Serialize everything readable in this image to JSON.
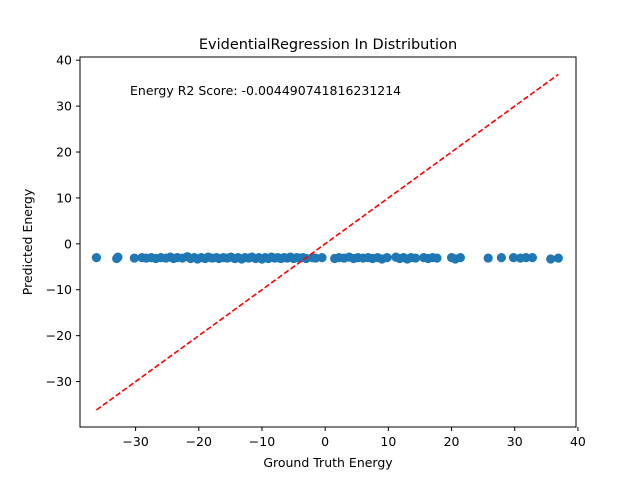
{
  "chart_data": {
    "type": "scatter",
    "title": "EvidentialRegression In Distribution",
    "xlabel": "Ground Truth Energy",
    "ylabel": "Predicted Energy",
    "annotation": "Energy R2 Score: -0.004490741816231214",
    "xlim": [
      -38.8,
      39.7
    ],
    "ylim": [
      -39.9,
      40.7
    ],
    "xticks": [
      -30,
      -20,
      -10,
      0,
      10,
      20,
      30,
      40
    ],
    "xtick_labels": [
      "−30",
      "−20",
      "−10",
      "0",
      "10",
      "20",
      "30",
      "40"
    ],
    "yticks": [
      -30,
      -20,
      -10,
      0,
      10,
      20,
      30,
      40
    ],
    "ytick_labels": [
      "−30",
      "−20",
      "−10",
      "0",
      "10",
      "20",
      "30",
      "40"
    ],
    "grid": false,
    "series": [
      {
        "marker": "circle",
        "color": "#1f77b4",
        "points": [
          [
            -36.2,
            -3.0
          ],
          [
            -33.0,
            -3.2
          ],
          [
            -32.8,
            -2.9
          ],
          [
            -30.2,
            -3.1
          ],
          [
            -29.0,
            -3.0
          ],
          [
            -28.3,
            -3.1
          ],
          [
            -27.5,
            -3.0
          ],
          [
            -26.8,
            -3.2
          ],
          [
            -26.0,
            -3.0
          ],
          [
            -25.2,
            -3.1
          ],
          [
            -24.5,
            -2.9
          ],
          [
            -24.0,
            -3.2
          ],
          [
            -23.4,
            -3.0
          ],
          [
            -22.6,
            -3.1
          ],
          [
            -21.8,
            -2.8
          ],
          [
            -21.3,
            -3.2
          ],
          [
            -20.7,
            -3.0
          ],
          [
            -20.2,
            -3.3
          ],
          [
            -19.6,
            -3.0
          ],
          [
            -19.0,
            -3.2
          ],
          [
            -18.5,
            -2.9
          ],
          [
            -17.9,
            -3.1
          ],
          [
            -17.2,
            -3.0
          ],
          [
            -16.8,
            -3.2
          ],
          [
            -16.1,
            -3.0
          ],
          [
            -15.5,
            -3.1
          ],
          [
            -14.9,
            -2.9
          ],
          [
            -14.3,
            -3.2
          ],
          [
            -13.8,
            -3.0
          ],
          [
            -13.2,
            -3.3
          ],
          [
            -12.7,
            -3.0
          ],
          [
            -12.1,
            -3.1
          ],
          [
            -11.6,
            -2.9
          ],
          [
            -11.0,
            -3.2
          ],
          [
            -10.5,
            -3.0
          ],
          [
            -10.0,
            -3.3
          ],
          [
            -9.5,
            -3.0
          ],
          [
            -9.0,
            -3.2
          ],
          [
            -8.5,
            -2.9
          ],
          [
            -8.0,
            -3.1
          ],
          [
            -7.5,
            -3.0
          ],
          [
            -7.0,
            -3.2
          ],
          [
            -6.5,
            -3.0
          ],
          [
            -6.0,
            -3.1
          ],
          [
            -5.5,
            -2.9
          ],
          [
            -5.0,
            -3.2
          ],
          [
            -4.5,
            -3.0
          ],
          [
            -4.0,
            -3.1
          ],
          [
            -3.5,
            -3.0
          ],
          [
            -3.0,
            -3.2
          ],
          [
            -2.0,
            -3.0
          ],
          [
            -1.5,
            -3.1
          ],
          [
            -0.5,
            -3.0
          ],
          [
            1.5,
            -3.2
          ],
          [
            2.2,
            -3.0
          ],
          [
            3.0,
            -3.1
          ],
          [
            3.8,
            -2.9
          ],
          [
            4.5,
            -3.2
          ],
          [
            5.2,
            -3.0
          ],
          [
            6.0,
            -3.1
          ],
          [
            6.8,
            -3.0
          ],
          [
            7.5,
            -3.2
          ],
          [
            8.3,
            -3.0
          ],
          [
            9.0,
            -3.3
          ],
          [
            9.8,
            -3.0
          ],
          [
            11.2,
            -2.9
          ],
          [
            11.8,
            -3.2
          ],
          [
            12.4,
            -3.0
          ],
          [
            13.0,
            -3.3
          ],
          [
            13.6,
            -3.0
          ],
          [
            14.3,
            -3.1
          ],
          [
            15.6,
            -3.0
          ],
          [
            16.3,
            -3.2
          ],
          [
            17.0,
            -3.0
          ],
          [
            17.7,
            -3.1
          ],
          [
            20.0,
            -3.0
          ],
          [
            20.6,
            -3.3
          ],
          [
            21.4,
            -3.0
          ],
          [
            25.8,
            -3.1
          ],
          [
            27.9,
            -3.0
          ],
          [
            29.8,
            -3.0
          ],
          [
            30.9,
            -3.1
          ],
          [
            31.8,
            -3.0
          ],
          [
            32.8,
            -3.0
          ],
          [
            35.7,
            -3.3
          ],
          [
            36.9,
            -3.1
          ]
        ]
      },
      {
        "type": "line",
        "style": "dashed",
        "color": "#ff0000",
        "x": [
          -36.2,
          36.9
        ],
        "y": [
          -36.2,
          36.9
        ]
      }
    ]
  }
}
